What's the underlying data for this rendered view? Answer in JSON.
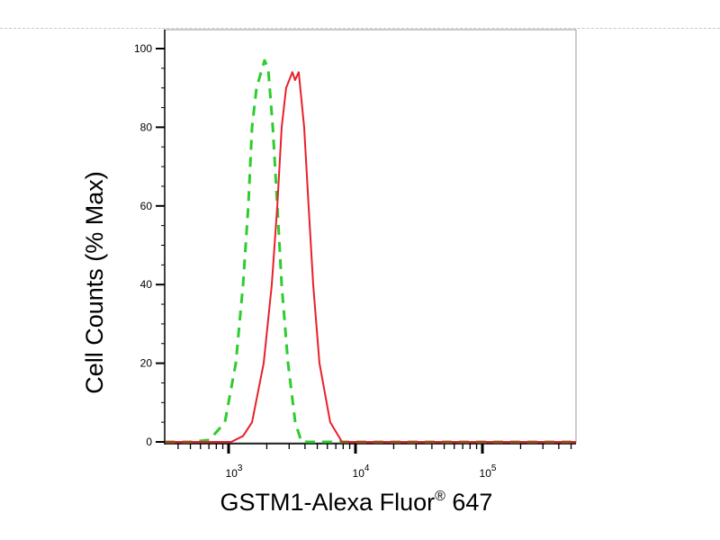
{
  "chart_data": {
    "type": "line",
    "xlabel": "GSTM1-Alexa Fluor® 647",
    "xlabel_main": "GSTM1-Alexa Fluor",
    "xlabel_sup": "®",
    "xlabel_tail": " 647",
    "ylabel": "Cell Counts (% Max)",
    "x_scale": "log",
    "xlim": [
      316,
      550000
    ],
    "ylim": [
      0,
      105
    ],
    "x_ticks": [
      {
        "value": 1000,
        "base": "10",
        "exp": "3"
      },
      {
        "value": 10000,
        "base": "10",
        "exp": "4"
      },
      {
        "value": 100000,
        "base": "10",
        "exp": "5"
      }
    ],
    "y_ticks": [
      0,
      20,
      40,
      60,
      80,
      100
    ],
    "grid": false,
    "legend": "none",
    "series": [
      {
        "color": "#2ecc2e",
        "style": "dashed",
        "x": [
          316,
          500,
          708,
          935,
          1140,
          1300,
          1430,
          1530,
          1660,
          1920,
          2050,
          2230,
          2420,
          2620,
          2940,
          3350,
          3750,
          550000
        ],
        "y": [
          0,
          0,
          0.5,
          5,
          20,
          40,
          60,
          80,
          90,
          97,
          95,
          80,
          60,
          40,
          20,
          5,
          0,
          0
        ]
      },
      {
        "color": "#e8202a",
        "style": "solid",
        "x": [
          316,
          1050,
          1300,
          1530,
          1890,
          2190,
          2420,
          2620,
          2840,
          3180,
          3340,
          3570,
          3940,
          4270,
          4640,
          5200,
          6320,
          7830,
          550000
        ],
        "y": [
          0,
          0,
          1.5,
          5,
          20,
          40,
          60,
          80,
          90,
          94,
          92,
          94,
          80,
          60,
          40,
          20,
          5,
          0,
          0
        ]
      }
    ]
  }
}
